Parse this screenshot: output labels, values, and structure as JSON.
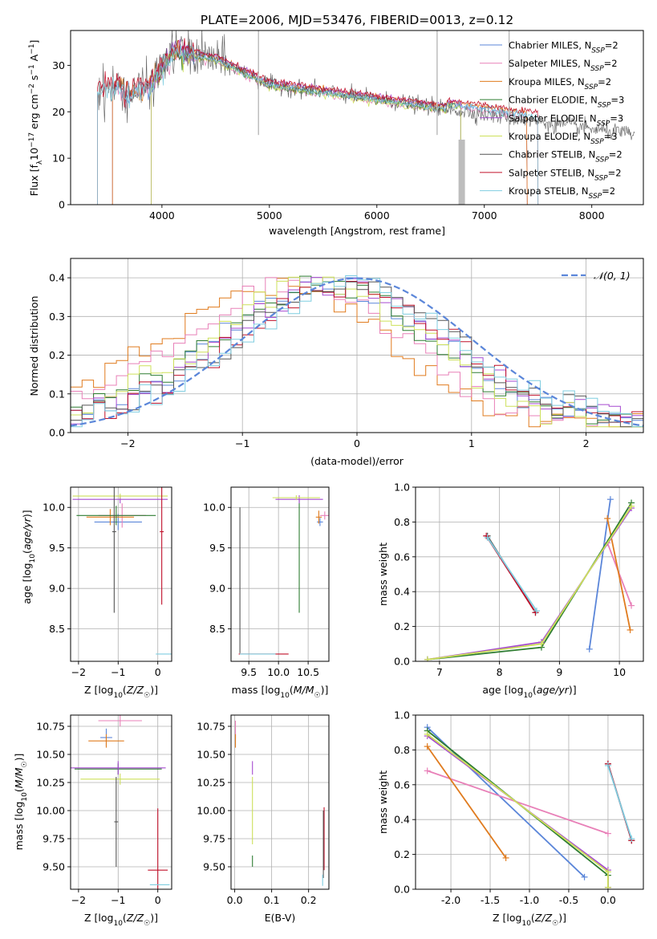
{
  "figure": {
    "title": "PLATE=2006, MJD=53476, FIBERID=0013, z=0.12"
  },
  "colors": {
    "Chabrier MILES": "#5b86d9",
    "Salpeter MILES": "#e880b8",
    "Kroupa MILES": "#e07b1e",
    "Chabrier ELODIE": "#2e7d32",
    "Salpeter ELODIE": "#a64ad0",
    "Kroupa ELODIE": "#cde05a",
    "Chabrier STELIB": "#555555",
    "Salpeter STELIB": "#c0102a",
    "Kroupa STELIB": "#7fcde0",
    "gaussian": "#5b86d9",
    "grid": "#b0b0b0"
  },
  "chart_data": [
    {
      "id": "spectrum",
      "type": "line",
      "xlabel": "wavelength [Angstrom, rest frame]",
      "ylabel": "Flux [f_λ 10^-17 erg cm^-2 s^-1 A^-1]",
      "xlim": [
        3150,
        8480
      ],
      "ylim": [
        0,
        37.5
      ],
      "xticks": [
        4000,
        5000,
        6000,
        7000,
        8000
      ],
      "yticks": [
        0,
        10,
        20,
        30
      ],
      "legend": "upper-right",
      "series": [
        {
          "name": "Chabrier MILES, N_SSP=2",
          "label_main": "Chabrier MILES, N",
          "label_sub": "SSP",
          "label_tail": "=2",
          "color_key": "Chabrier MILES",
          "range": [
            3540,
            7400
          ]
        },
        {
          "name": "Salpeter MILES, N_SSP=2",
          "label_main": "Salpeter MILES, N",
          "label_sub": "SSP",
          "label_tail": "=2",
          "color_key": "Salpeter MILES",
          "range": [
            3540,
            7400
          ]
        },
        {
          "name": "Kroupa MILES, N_SSP=2",
          "label_main": "Kroupa MILES, N",
          "label_sub": "SSP",
          "label_tail": "=2",
          "color_key": "Kroupa MILES",
          "range": [
            3540,
            7400
          ]
        },
        {
          "name": "Chabrier ELODIE, N_SSP=3",
          "label_main": "Chabrier ELODIE, N",
          "label_sub": "SSP",
          "label_tail": "=3",
          "color_key": "Chabrier ELODIE",
          "range": [
            3900,
            6780
          ]
        },
        {
          "name": "Salpeter ELODIE, N_SSP=3",
          "label_main": "Salpeter ELODIE, N",
          "label_sub": "SSP",
          "label_tail": "=3",
          "color_key": "Salpeter ELODIE",
          "range": [
            3900,
            6780
          ]
        },
        {
          "name": "Kroupa ELODIE, N_SSP=3",
          "label_main": "Kroupa ELODIE, N",
          "label_sub": "SSP",
          "label_tail": "=3",
          "color_key": "Kroupa ELODIE",
          "range": [
            3900,
            6780
          ]
        },
        {
          "name": "Chabrier STELIB, N_SSP=2",
          "label_main": "Chabrier STELIB, N",
          "label_sub": "SSP",
          "label_tail": "=2",
          "color_key": "Chabrier STELIB",
          "range": [
            3400,
            8400
          ]
        },
        {
          "name": "Salpeter STELIB, N_SSP=2",
          "label_main": "Salpeter STELIB, N",
          "label_sub": "SSP",
          "label_tail": "=2",
          "color_key": "Salpeter STELIB",
          "range": [
            3400,
            7500
          ]
        },
        {
          "name": "Kroupa STELIB, N_SSP=2",
          "label_main": "Kroupa STELIB, N",
          "label_sub": "SSP",
          "label_tail": "=2",
          "color_key": "Kroupa STELIB",
          "range": [
            3400,
            7500
          ]
        }
      ]
    },
    {
      "id": "residuals",
      "type": "line",
      "xlabel": "(data-model)/error",
      "ylabel": "Normed distribution",
      "xlim": [
        -2.5,
        2.5
      ],
      "ylim": [
        0,
        0.45
      ],
      "xticks": [
        -2,
        -1,
        0,
        1,
        2
      ],
      "yticks": [
        0.0,
        0.1,
        0.2,
        0.3,
        0.4
      ],
      "legend": "upper-right",
      "gaussian_label": "𝒩(0, 1)",
      "histogram_bins": [
        -2.5,
        2.5,
        50
      ]
    },
    {
      "id": "age-vs-Z",
      "type": "scatter",
      "xlabel": "Z [log10(Z/Z☉)]",
      "ylabel": "age [log10(age/yr)]",
      "xlim": [
        -2.2,
        0.35
      ],
      "ylim": [
        8.1,
        10.25
      ],
      "xticks": [
        -2,
        -1,
        0
      ],
      "yticks": [
        8.5,
        9.0,
        9.5,
        10.0
      ],
      "errorbars": [
        {
          "color_key": "Chabrier MILES",
          "x": -1.0,
          "y": 9.82,
          "xerr": 0.6,
          "yerr": 0.1
        },
        {
          "color_key": "Salpeter MILES",
          "x": -0.9,
          "y": 9.9,
          "xerr": 0.6,
          "yerr": 0.15
        },
        {
          "color_key": "Kroupa MILES",
          "x": -1.2,
          "y": 9.88,
          "xerr": 0.6,
          "yerr": 0.1
        },
        {
          "color_key": "Chabrier ELODIE",
          "x": -1.05,
          "y": 9.9,
          "xerr": 1.0,
          "yerr": 0.12
        },
        {
          "color_key": "Salpeter ELODIE",
          "x": -0.95,
          "y": 10.1,
          "xerr": 1.2,
          "yerr": 0.05
        },
        {
          "color_key": "Kroupa ELODIE",
          "x": -0.95,
          "y": 10.14,
          "xerr": 1.2,
          "yerr": 0.03
        },
        {
          "color_key": "Chabrier STELIB",
          "x": -1.1,
          "y": 9.7,
          "xerr": 0.05,
          "yerr": 1.0
        },
        {
          "color_key": "Salpeter STELIB",
          "x": 0.1,
          "y": 9.7,
          "xerr": 0.05,
          "yerr": 0.9
        },
        {
          "color_key": "Kroupa STELIB",
          "x": 0.15,
          "y": 8.19,
          "xerr": 0.2,
          "yerr": 0.0
        }
      ]
    },
    {
      "id": "age-vs-mass",
      "type": "scatter",
      "xlabel": "mass [log10(M/M☉)]",
      "ylabel": "",
      "xlim": [
        9.2,
        10.85
      ],
      "ylim": [
        8.1,
        10.25
      ],
      "xticks": [
        9.5,
        10.0,
        10.5
      ],
      "yticks": [
        8.5,
        9.0,
        9.5,
        10.0
      ],
      "errorbars": [
        {
          "color_key": "Chabrier MILES",
          "x": 10.7,
          "y": 9.82,
          "xerr": 0.05,
          "yerr": 0.05
        },
        {
          "color_key": "Salpeter MILES",
          "x": 10.78,
          "y": 9.9,
          "xerr": 0.08,
          "yerr": 0.05
        },
        {
          "color_key": "Kroupa MILES",
          "x": 10.68,
          "y": 9.88,
          "xerr": 0.05,
          "yerr": 0.08
        },
        {
          "color_key": "Chabrier ELODIE",
          "x": 10.35,
          "y": 9.4,
          "xerr": 0.0,
          "yerr": 0.7
        },
        {
          "color_key": "Salpeter ELODIE",
          "x": 10.35,
          "y": 10.1,
          "xerr": 0.4,
          "yerr": 0.05
        },
        {
          "color_key": "Kroupa ELODIE",
          "x": 10.3,
          "y": 10.12,
          "xerr": 0.4,
          "yerr": 0.03
        },
        {
          "color_key": "Chabrier STELIB",
          "x": 9.35,
          "y": 9.1,
          "xerr": 0.0,
          "yerr": 0.9
        },
        {
          "color_key": "Salpeter STELIB",
          "x": 9.75,
          "y": 8.19,
          "xerr": 0.42,
          "yerr": 0.0
        },
        {
          "color_key": "Kroupa STELIB",
          "x": 9.65,
          "y": 8.19,
          "xerr": 0.3,
          "yerr": 0.0
        }
      ]
    },
    {
      "id": "mass-weight-vs-age",
      "type": "line",
      "xlabel": "age [log10(age/yr)]",
      "ylabel": "mass weight",
      "xlim": [
        6.6,
        10.4
      ],
      "ylim": [
        0,
        1.0
      ],
      "xticks": [
        7,
        8,
        9,
        10
      ],
      "yticks": [
        0.0,
        0.2,
        0.4,
        0.6,
        0.8,
        1.0
      ],
      "series": [
        {
          "color_key": "Chabrier MILES",
          "x": [
            9.5,
            9.85
          ],
          "y": [
            0.07,
            0.93
          ]
        },
        {
          "color_key": "Salpeter MILES",
          "x": [
            9.8,
            10.2
          ],
          "y": [
            0.68,
            0.32
          ]
        },
        {
          "color_key": "Kroupa MILES",
          "x": [
            9.8,
            10.18
          ],
          "y": [
            0.82,
            0.18
          ]
        },
        {
          "color_key": "Chabrier ELODIE",
          "x": [
            6.8,
            8.7,
            10.2
          ],
          "y": [
            0.01,
            0.08,
            0.91
          ]
        },
        {
          "color_key": "Salpeter ELODIE",
          "x": [
            6.8,
            8.7,
            10.2
          ],
          "y": [
            0.01,
            0.11,
            0.88
          ]
        },
        {
          "color_key": "Kroupa ELODIE",
          "x": [
            6.8,
            8.7,
            10.2
          ],
          "y": [
            0.01,
            0.1,
            0.89
          ]
        },
        {
          "color_key": "Chabrier STELIB",
          "x": [
            7.8,
            8.6
          ],
          "y": [
            0.72,
            0.28
          ]
        },
        {
          "color_key": "Salpeter STELIB",
          "x": [
            7.78,
            8.6
          ],
          "y": [
            0.72,
            0.28
          ]
        },
        {
          "color_key": "Kroupa STELIB",
          "x": [
            7.8,
            8.62
          ],
          "y": [
            0.71,
            0.29
          ]
        }
      ]
    },
    {
      "id": "mass-vs-Z",
      "type": "scatter",
      "xlabel": "Z [log10(Z/Z☉)]",
      "ylabel": "mass [log10(M/M☉)]",
      "xlim": [
        -2.2,
        0.35
      ],
      "ylim": [
        9.3,
        10.85
      ],
      "xticks": [
        -2,
        -1,
        0
      ],
      "yticks": [
        9.5,
        9.75,
        10.0,
        10.25,
        10.5,
        10.75
      ],
      "errorbars": [
        {
          "color_key": "Chabrier MILES",
          "x": -1.3,
          "y": 10.65,
          "xerr": 0.15,
          "yerr": 0.08
        },
        {
          "color_key": "Salpeter MILES",
          "x": -0.95,
          "y": 10.8,
          "xerr": 0.55,
          "yerr": 0.05
        },
        {
          "color_key": "Kroupa MILES",
          "x": -1.3,
          "y": 10.62,
          "xerr": 0.45,
          "yerr": 0.06
        },
        {
          "color_key": "Chabrier ELODIE",
          "x": -1.0,
          "y": 10.37,
          "xerr": 1.1,
          "yerr": 0.05
        },
        {
          "color_key": "Salpeter ELODIE",
          "x": -1.0,
          "y": 10.38,
          "xerr": 1.2,
          "yerr": 0.06
        },
        {
          "color_key": "Kroupa ELODIE",
          "x": -0.95,
          "y": 10.28,
          "xerr": 1.0,
          "yerr": 0.05
        },
        {
          "color_key": "Chabrier STELIB",
          "x": -1.05,
          "y": 9.9,
          "xerr": 0.05,
          "yerr": 0.4
        },
        {
          "color_key": "Salpeter STELIB",
          "x": 0.0,
          "y": 9.47,
          "xerr": 0.25,
          "yerr": 0.55
        },
        {
          "color_key": "Kroupa STELIB",
          "x": 0.05,
          "y": 9.34,
          "xerr": 0.25,
          "yerr": 0.0
        }
      ]
    },
    {
      "id": "mass-vs-EBV",
      "type": "scatter",
      "xlabel": "E(B-V)",
      "ylabel": "",
      "xlim": [
        -0.01,
        0.255
      ],
      "ylim": [
        9.3,
        10.85
      ],
      "xticks": [
        0.0,
        0.1,
        0.2
      ],
      "yticks": [
        9.5,
        9.75,
        10.0,
        10.25,
        10.5,
        10.75
      ],
      "errorbars": [
        {
          "color_key": "Salpeter MILES",
          "x": 0.002,
          "y": 10.72,
          "xerr": 0.0,
          "yerr": 0.08
        },
        {
          "color_key": "Kroupa MILES",
          "x": 0.002,
          "y": 10.62,
          "xerr": 0.0,
          "yerr": 0.06
        },
        {
          "color_key": "Salpeter ELODIE",
          "x": 0.048,
          "y": 10.38,
          "xerr": 0.0,
          "yerr": 0.06
        },
        {
          "color_key": "Kroupa ELODIE",
          "x": 0.048,
          "y": 10.0,
          "xerr": 0.0,
          "yerr": 0.3
        },
        {
          "color_key": "Chabrier ELODIE",
          "x": 0.048,
          "y": 9.55,
          "xerr": 0.0,
          "yerr": 0.05
        },
        {
          "color_key": "Salpeter STELIB",
          "x": 0.242,
          "y": 9.75,
          "xerr": 0.0,
          "yerr": 0.28
        },
        {
          "color_key": "Chabrier STELIB",
          "x": 0.24,
          "y": 9.7,
          "xerr": 0.0,
          "yerr": 0.3
        },
        {
          "color_key": "Kroupa STELIB",
          "x": 0.238,
          "y": 9.38,
          "xerr": 0.0,
          "yerr": 0.05
        }
      ]
    },
    {
      "id": "mass-weight-vs-Z",
      "type": "line",
      "xlabel": "Z [log10(Z/Z☉)]",
      "ylabel": "mass weight",
      "xlim": [
        -2.45,
        0.45
      ],
      "ylim": [
        0,
        1.0
      ],
      "xticks": [
        -2.0,
        -1.5,
        -1.0,
        -0.5,
        0.0
      ],
      "yticks": [
        0.0,
        0.2,
        0.4,
        0.6,
        0.8,
        1.0
      ],
      "series": [
        {
          "color_key": "Chabrier MILES",
          "x": [
            -2.3,
            -0.3
          ],
          "y": [
            0.93,
            0.07
          ]
        },
        {
          "color_key": "Salpeter MILES",
          "x": [
            -2.3,
            0.0
          ],
          "y": [
            0.68,
            0.32
          ]
        },
        {
          "color_key": "Kroupa MILES",
          "x": [
            -2.3,
            -1.3
          ],
          "y": [
            0.82,
            0.18
          ]
        },
        {
          "color_key": "Chabrier ELODIE",
          "x": [
            -2.3,
            0.0,
            0.0
          ],
          "y": [
            0.91,
            0.08,
            0.01
          ]
        },
        {
          "color_key": "Salpeter ELODIE",
          "x": [
            -2.3,
            0.0,
            0.0
          ],
          "y": [
            0.88,
            0.11,
            0.01
          ]
        },
        {
          "color_key": "Kroupa ELODIE",
          "x": [
            -2.3,
            0.0,
            0.0
          ],
          "y": [
            0.89,
            0.1,
            0.01
          ]
        },
        {
          "color_key": "Chabrier STELIB",
          "x": [
            0.0,
            0.3
          ],
          "y": [
            0.72,
            0.28
          ]
        },
        {
          "color_key": "Salpeter STELIB",
          "x": [
            0.0,
            0.3
          ],
          "y": [
            0.72,
            0.28
          ]
        },
        {
          "color_key": "Kroupa STELIB",
          "x": [
            0.0,
            0.3
          ],
          "y": [
            0.71,
            0.29
          ]
        }
      ]
    }
  ]
}
